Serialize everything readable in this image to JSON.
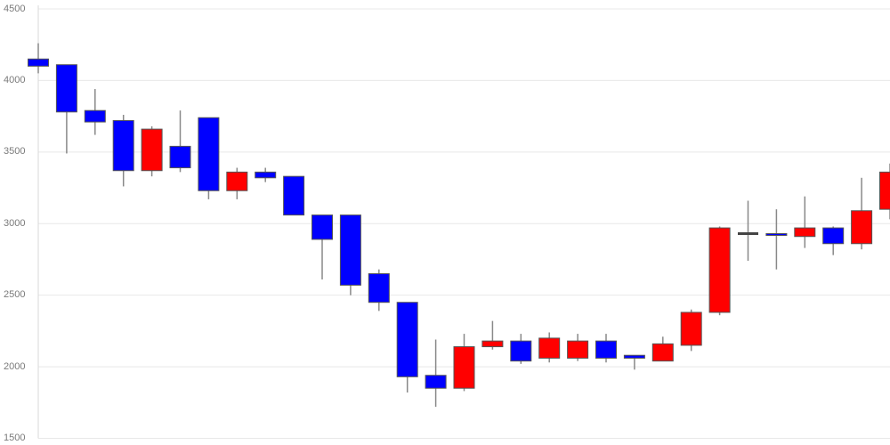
{
  "chart_data": {
    "type": "candlestick",
    "title": "",
    "xlabel": "",
    "ylabel": "",
    "legend": false,
    "grid": true,
    "y_axis": {
      "min": 1500,
      "max": 4500,
      "tick_interval": 500,
      "ticks": [
        4500,
        4000,
        3500,
        3000,
        2500,
        2000,
        1500
      ],
      "tick_labels": [
        "4500",
        "4000",
        "3500",
        "3000",
        "2500",
        "2000",
        "1500"
      ]
    },
    "colors": {
      "up": "#ff0000",
      "down": "#0000ff",
      "doji": "#444444",
      "wick": "#888888",
      "body_border": "#555555",
      "gridline": "#e8e8e8",
      "axis_line": "#d8d8d8",
      "label": "#7a7a7a",
      "background": "#ffffff"
    },
    "candles": [
      {
        "open": 4150,
        "high": 4260,
        "low": 4050,
        "close": 4100,
        "direction": "down"
      },
      {
        "open": 4110,
        "high": 4110,
        "low": 3490,
        "close": 3780,
        "direction": "down"
      },
      {
        "open": 3790,
        "high": 3940,
        "low": 3620,
        "close": 3710,
        "direction": "down"
      },
      {
        "open": 3720,
        "high": 3760,
        "low": 3260,
        "close": 3370,
        "direction": "down"
      },
      {
        "open": 3370,
        "high": 3680,
        "low": 3330,
        "close": 3660,
        "direction": "up"
      },
      {
        "open": 3540,
        "high": 3790,
        "low": 3360,
        "close": 3390,
        "direction": "down"
      },
      {
        "open": 3740,
        "high": 3740,
        "low": 3170,
        "close": 3230,
        "direction": "down"
      },
      {
        "open": 3230,
        "high": 3390,
        "low": 3170,
        "close": 3360,
        "direction": "up"
      },
      {
        "open": 3360,
        "high": 3390,
        "low": 3290,
        "close": 3320,
        "direction": "down"
      },
      {
        "open": 3330,
        "high": 3330,
        "low": 3060,
        "close": 3060,
        "direction": "down"
      },
      {
        "open": 3060,
        "high": 3060,
        "low": 2610,
        "close": 2890,
        "direction": "down"
      },
      {
        "open": 3060,
        "high": 3060,
        "low": 2500,
        "close": 2570,
        "direction": "down"
      },
      {
        "open": 2650,
        "high": 2680,
        "low": 2390,
        "close": 2450,
        "direction": "down"
      },
      {
        "open": 2450,
        "high": 2450,
        "low": 1820,
        "close": 1930,
        "direction": "down"
      },
      {
        "open": 1940,
        "high": 2190,
        "low": 1720,
        "close": 1850,
        "direction": "down"
      },
      {
        "open": 1850,
        "high": 2230,
        "low": 1830,
        "close": 2140,
        "direction": "up"
      },
      {
        "open": 2140,
        "high": 2320,
        "low": 2120,
        "close": 2180,
        "direction": "up"
      },
      {
        "open": 2180,
        "high": 2230,
        "low": 2020,
        "close": 2040,
        "direction": "down"
      },
      {
        "open": 2060,
        "high": 2240,
        "low": 2030,
        "close": 2200,
        "direction": "up"
      },
      {
        "open": 2060,
        "high": 2230,
        "low": 2040,
        "close": 2180,
        "direction": "up"
      },
      {
        "open": 2180,
        "high": 2230,
        "low": 2030,
        "close": 2060,
        "direction": "down"
      },
      {
        "open": 2080,
        "high": 2080,
        "low": 1980,
        "close": 2060,
        "direction": "down"
      },
      {
        "open": 2040,
        "high": 2210,
        "low": 2040,
        "close": 2160,
        "direction": "up"
      },
      {
        "open": 2150,
        "high": 2400,
        "low": 2110,
        "close": 2380,
        "direction": "up"
      },
      {
        "open": 2380,
        "high": 2980,
        "low": 2360,
        "close": 2970,
        "direction": "up"
      },
      {
        "open": 2930,
        "high": 3160,
        "low": 2740,
        "close": 2930,
        "direction": "doji"
      },
      {
        "open": 2930,
        "high": 3100,
        "low": 2680,
        "close": 2920,
        "direction": "down"
      },
      {
        "open": 2910,
        "high": 3190,
        "low": 2830,
        "close": 2970,
        "direction": "up"
      },
      {
        "open": 2970,
        "high": 2980,
        "low": 2780,
        "close": 2860,
        "direction": "down"
      },
      {
        "open": 2860,
        "high": 3320,
        "low": 2820,
        "close": 3090,
        "direction": "up"
      },
      {
        "open": 3100,
        "high": 3420,
        "low": 3030,
        "close": 3360,
        "direction": "up"
      }
    ]
  }
}
